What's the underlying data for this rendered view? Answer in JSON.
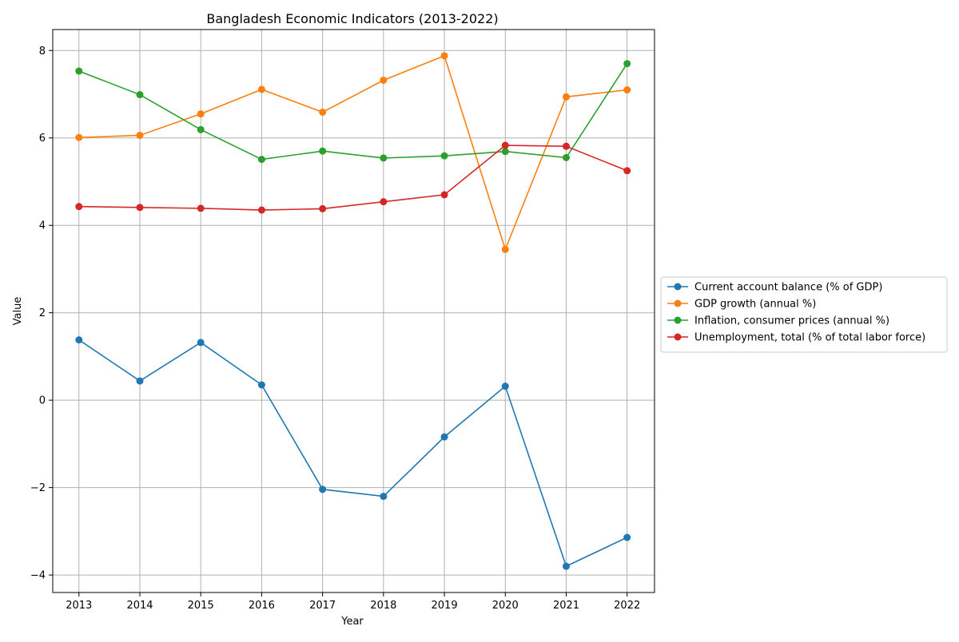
{
  "chart_data": {
    "type": "line",
    "title": "Bangladesh Economic Indicators (2013-2022)",
    "xlabel": "Year",
    "ylabel": "Value",
    "x": [
      2013,
      2014,
      2015,
      2016,
      2017,
      2018,
      2019,
      2020,
      2021,
      2022
    ],
    "xlim": [
      2012.57,
      2022.45
    ],
    "ylim": [
      -4.4,
      8.48
    ],
    "yticks": [
      -4,
      -2,
      0,
      2,
      4,
      6,
      8
    ],
    "grid": true,
    "legend_position": "outside-right",
    "series": [
      {
        "name": "Current account balance (% of GDP)",
        "color": "#1f77b4",
        "values": [
          1.38,
          0.44,
          1.32,
          0.35,
          -2.04,
          -2.2,
          -0.84,
          0.32,
          -3.8,
          -3.14
        ]
      },
      {
        "name": "GDP growth (annual %)",
        "color": "#ff7f0e",
        "values": [
          6.01,
          6.06,
          6.55,
          7.11,
          6.59,
          7.32,
          7.88,
          3.45,
          6.94,
          7.1
        ]
      },
      {
        "name": "Inflation, consumer prices (annual %)",
        "color": "#2ca02c",
        "values": [
          7.53,
          6.99,
          6.19,
          5.51,
          5.7,
          5.54,
          5.59,
          5.69,
          5.55,
          7.7
        ]
      },
      {
        "name": "Unemployment, total (% of total labor force)",
        "color": "#d62728",
        "values": [
          4.43,
          4.41,
          4.39,
          4.35,
          4.38,
          4.54,
          4.7,
          5.83,
          5.81,
          5.25
        ]
      }
    ]
  }
}
